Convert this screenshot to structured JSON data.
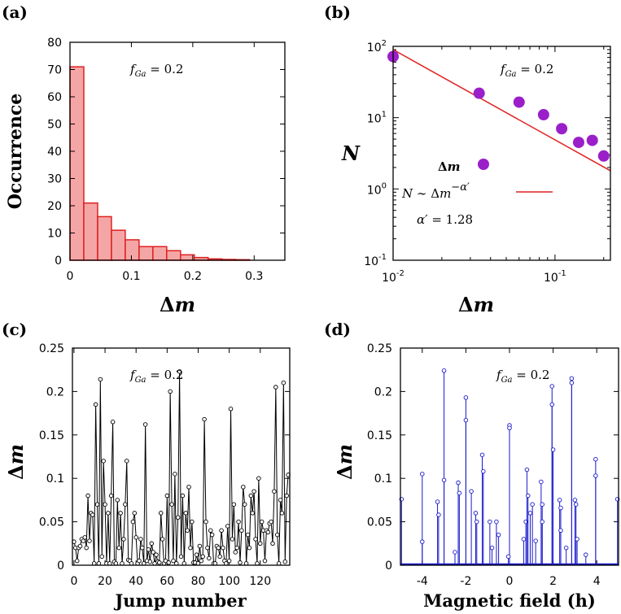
{
  "chart_data": [
    {
      "panel": "(a)",
      "type": "bar",
      "xlabel": "Δm",
      "ylabel": "Occurrence",
      "annotation": "f_Ga = 0.2",
      "xlim": [
        0,
        0.35
      ],
      "ylim": [
        0,
        80
      ],
      "bin_width": 0.0225,
      "bin_starts": [
        0,
        0.0225,
        0.045,
        0.0675,
        0.09,
        0.1125,
        0.135,
        0.1575,
        0.18,
        0.2025,
        0.225,
        0.2475,
        0.27
      ],
      "values": [
        71,
        21,
        16,
        11,
        7.5,
        5,
        5,
        3.5,
        2,
        1,
        0.5,
        0.3,
        0.2
      ],
      "xticks": [
        "0",
        "0.1",
        "0.2",
        "0.3"
      ],
      "yticks": [
        "0",
        "10",
        "20",
        "30",
        "40",
        "50",
        "60",
        "70",
        "80"
      ],
      "fill_color": "#f4a6a6",
      "stroke_color": "#e02020"
    },
    {
      "panel": "(b)",
      "type": "scatter",
      "xscale": "log",
      "yscale": "log",
      "xlabel": "Δm",
      "ylabel": "N",
      "annotation": "f_Ga = 0.2",
      "xlim": [
        0.01,
        0.22
      ],
      "ylim": [
        0.1,
        100
      ],
      "points": [
        [
          0.01,
          72
        ],
        [
          0.034,
          22
        ],
        [
          0.06,
          16.5
        ],
        [
          0.085,
          11
        ],
        [
          0.11,
          7
        ],
        [
          0.14,
          4.5
        ],
        [
          0.17,
          4.8
        ],
        [
          0.2,
          2.9
        ]
      ],
      "fit_line": [
        [
          0.01,
          90
        ],
        [
          0.22,
          1.8
        ]
      ],
      "legend": [
        "Δm",
        "N ~ Δm^-α′",
        "α′ = 1.28"
      ],
      "xticks": [
        "10^-2",
        "10^-1"
      ],
      "yticks": [
        "10^-1",
        "10^0",
        "10^1",
        "10^2"
      ],
      "point_color": "#9a1fc9",
      "line_color": "#e02020"
    },
    {
      "panel": "(c)",
      "type": "line",
      "xlabel": "Jump number",
      "ylabel": "Δm",
      "annotation": "f_Ga = 0.2",
      "xlim": [
        -1,
        139
      ],
      "ylim": [
        0,
        0.25
      ],
      "x": [
        0,
        1,
        2,
        3,
        4,
        5,
        6,
        7,
        8,
        9,
        10,
        11,
        12,
        13,
        14,
        15,
        16,
        17,
        18,
        19,
        20,
        21,
        22,
        23,
        24,
        25,
        26,
        27,
        28,
        29,
        30,
        31,
        32,
        33,
        34,
        35,
        36,
        37,
        38,
        39,
        40,
        41,
        42,
        43,
        44,
        45,
        46,
        47,
        48,
        49,
        50,
        51,
        52,
        53,
        54,
        55,
        56,
        57,
        58,
        59,
        60,
        61,
        62,
        63,
        64,
        65,
        66,
        67,
        68,
        69,
        70,
        71,
        72,
        73,
        74,
        75,
        76,
        77,
        78,
        79,
        80,
        81,
        82,
        83,
        84,
        85,
        86,
        87,
        88,
        89,
        90,
        91,
        92,
        93,
        94,
        95,
        96,
        97,
        98,
        99,
        100,
        101,
        102,
        103,
        104,
        105,
        106,
        107,
        108,
        109,
        110,
        111,
        112,
        113,
        114,
        115,
        116,
        117,
        118,
        119,
        120,
        121,
        122,
        123,
        124,
        125,
        126,
        127,
        128,
        129,
        130,
        131,
        132,
        133,
        134,
        135,
        136,
        137,
        138
      ],
      "values": [
        0.027,
        0.02,
        0.005,
        0.02,
        0.022,
        0.03,
        0.028,
        0.032,
        0.02,
        0.08,
        0.028,
        0.06,
        0.058,
        0.002,
        0.185,
        0.07,
        0.002,
        0.214,
        0.01,
        0.12,
        0.07,
        0.002,
        0.06,
        0.002,
        0.08,
        0.165,
        0.004,
        0.002,
        0.075,
        0.02,
        0.06,
        0.002,
        0.03,
        0.07,
        0.12,
        0.006,
        0.005,
        0.002,
        0.05,
        0.06,
        0.032,
        0.002,
        0.005,
        0.03,
        0.02,
        0.002,
        0.162,
        0.005,
        0.018,
        0.004,
        0.025,
        0.015,
        0.002,
        0.012,
        0.004,
        0.003,
        0.06,
        0.03,
        0.002,
        0.005,
        0.08,
        0.003,
        0.2,
        0.07,
        0.005,
        0.105,
        0.002,
        0.055,
        0.223,
        0.01,
        0.08,
        0.002,
        0.06,
        0.04,
        0.09,
        0.02,
        0.05,
        0.003,
        0.003,
        0.012,
        0.002,
        0.022,
        0.005,
        0.01,
        0.168,
        0.05,
        0.02,
        0.008,
        0.04,
        0.035,
        0.002,
        0.002,
        0.022,
        0.02,
        0.01,
        0.04,
        0.02,
        0.005,
        0.002,
        0.045,
        0.005,
        0.18,
        0.03,
        0.07,
        0.015,
        0.02,
        0.05,
        0.003,
        0.04,
        0.09,
        0.07,
        0.002,
        0.035,
        0.02,
        0.08,
        0.06,
        0.085,
        0.03,
        0.002,
        0.1,
        0.025,
        0.05,
        0.04,
        0.005,
        0.04,
        0.038,
        0.048,
        0.05,
        0.025,
        0.085,
        0.205,
        0.035,
        0.002,
        0.075,
        0.06,
        0.21,
        0.004,
        0.08,
        0.104
      ],
      "xticks": [
        "0",
        "20",
        "40",
        "60",
        "80",
        "100",
        "120"
      ],
      "yticks": [
        "0",
        "0.05",
        "0.1",
        "0.15",
        "0.2",
        "0.25"
      ],
      "line_color": "#000000"
    },
    {
      "panel": "(d)",
      "type": "line",
      "xlabel": "Magnetic field (h)",
      "ylabel": "Δm",
      "annotation": "f_Ga = 0.2",
      "xlim": [
        -5,
        5
      ],
      "ylim": [
        0,
        0.25
      ],
      "spikes": [
        [
          -4.95,
          0.076
        ],
        [
          -4.0,
          0.105
        ],
        [
          -4.0,
          0.027
        ],
        [
          -3.3,
          0.073
        ],
        [
          -3.25,
          0.058
        ],
        [
          -3.0,
          0.224
        ],
        [
          -3.0,
          0.098
        ],
        [
          -2.5,
          0.015
        ],
        [
          -2.35,
          0.095
        ],
        [
          -2.3,
          0.083
        ],
        [
          -2.0,
          0.193
        ],
        [
          -2.0,
          0.167
        ],
        [
          -1.75,
          0.085
        ],
        [
          -1.55,
          0.06
        ],
        [
          -1.5,
          0.05
        ],
        [
          -1.25,
          0.127
        ],
        [
          -1.2,
          0.108
        ],
        [
          -0.9,
          0.05
        ],
        [
          -0.8,
          0.02
        ],
        [
          -0.6,
          0.05
        ],
        [
          -0.5,
          0.035
        ],
        [
          0.0,
          0.161
        ],
        [
          0.0,
          0.158
        ],
        [
          -0.05,
          0.01
        ],
        [
          0.65,
          0.03
        ],
        [
          0.75,
          0.05
        ],
        [
          0.8,
          0.11
        ],
        [
          0.85,
          0.08
        ],
        [
          0.95,
          0.06
        ],
        [
          1.05,
          0.07
        ],
        [
          1.2,
          0.028
        ],
        [
          1.45,
          0.096
        ],
        [
          1.5,
          0.07
        ],
        [
          1.5,
          0.05
        ],
        [
          1.95,
          0.206
        ],
        [
          1.95,
          0.185
        ],
        [
          2.0,
          0.133
        ],
        [
          2.3,
          0.075
        ],
        [
          2.35,
          0.066
        ],
        [
          2.35,
          0.04
        ],
        [
          2.6,
          0.02
        ],
        [
          2.85,
          0.215
        ],
        [
          2.85,
          0.21
        ],
        [
          3.0,
          0.075
        ],
        [
          3.05,
          0.07
        ],
        [
          3.1,
          0.03
        ],
        [
          3.5,
          0.012
        ],
        [
          3.95,
          0.122
        ],
        [
          3.95,
          0.103
        ],
        [
          4.95,
          0.076
        ]
      ],
      "xticks": [
        "-4",
        "-2",
        "0",
        "2",
        "4"
      ],
      "yticks": [
        "0",
        "0.05",
        "0.1",
        "0.15",
        "0.2",
        "0.25"
      ],
      "line_color": "#1a1acc"
    }
  ]
}
